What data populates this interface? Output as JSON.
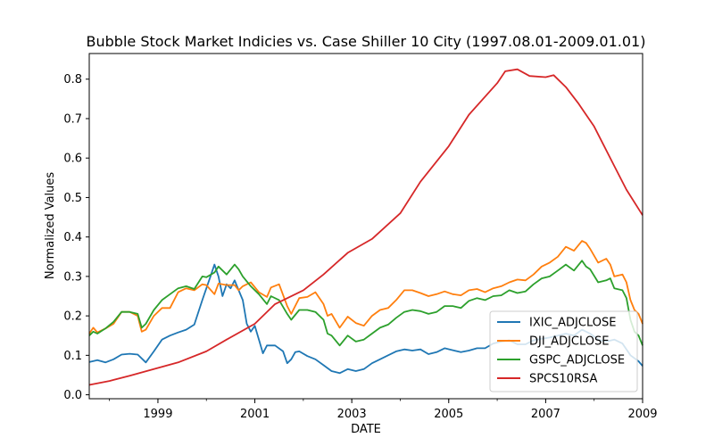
{
  "chart_data": {
    "type": "line",
    "title": "Bubble Stock Market Indicies vs. Case Shiller 10 City (1997.08.01-2009.01.01)",
    "xlabel": "DATE",
    "ylabel": "Normalized Values",
    "xlim": [
      "1997-08-01",
      "2009-01-01"
    ],
    "ylim": [
      -0.01,
      0.865
    ],
    "xticks": [
      "1999",
      "2001",
      "2003",
      "2005",
      "2007",
      "2009"
    ],
    "yticks": [
      "0.0",
      "0.1",
      "0.2",
      "0.3",
      "0.4",
      "0.5",
      "0.6",
      "0.7",
      "0.8"
    ],
    "grid": false,
    "legend_position": "lower-right",
    "series": [
      {
        "name": "IXIC_ADJCLOSE",
        "color": "#1f77b4",
        "points": [
          [
            "1997-08-01",
            0.083
          ],
          [
            "1997-10-01",
            0.088
          ],
          [
            "1997-12-01",
            0.082
          ],
          [
            "1998-02-01",
            0.09
          ],
          [
            "1998-04-01",
            0.102
          ],
          [
            "1998-06-01",
            0.104
          ],
          [
            "1998-08-01",
            0.102
          ],
          [
            "1998-10-01",
            0.082
          ],
          [
            "1998-12-01",
            0.11
          ],
          [
            "1999-02-01",
            0.14
          ],
          [
            "1999-04-01",
            0.15
          ],
          [
            "1999-06-01",
            0.158
          ],
          [
            "1999-08-01",
            0.165
          ],
          [
            "1999-10-01",
            0.178
          ],
          [
            "1999-12-01",
            0.24
          ],
          [
            "2000-02-01",
            0.3
          ],
          [
            "2000-03-01",
            0.33
          ],
          [
            "2000-04-01",
            0.3
          ],
          [
            "2000-05-01",
            0.25
          ],
          [
            "2000-06-01",
            0.28
          ],
          [
            "2000-07-01",
            0.27
          ],
          [
            "2000-08-01",
            0.29
          ],
          [
            "2000-09-01",
            0.265
          ],
          [
            "2000-10-01",
            0.24
          ],
          [
            "2000-11-01",
            0.18
          ],
          [
            "2000-12-01",
            0.16
          ],
          [
            "2001-01-01",
            0.175
          ],
          [
            "2001-02-01",
            0.14
          ],
          [
            "2001-03-01",
            0.105
          ],
          [
            "2001-04-01",
            0.125
          ],
          [
            "2001-06-01",
            0.125
          ],
          [
            "2001-08-01",
            0.11
          ],
          [
            "2001-09-01",
            0.08
          ],
          [
            "2001-10-01",
            0.09
          ],
          [
            "2001-11-01",
            0.108
          ],
          [
            "2001-12-01",
            0.11
          ],
          [
            "2002-02-01",
            0.098
          ],
          [
            "2002-04-01",
            0.09
          ],
          [
            "2002-06-01",
            0.075
          ],
          [
            "2002-08-01",
            0.06
          ],
          [
            "2002-10-01",
            0.055
          ],
          [
            "2002-12-01",
            0.065
          ],
          [
            "2003-02-01",
            0.06
          ],
          [
            "2003-04-01",
            0.065
          ],
          [
            "2003-06-01",
            0.08
          ],
          [
            "2003-08-01",
            0.09
          ],
          [
            "2003-10-01",
            0.1
          ],
          [
            "2003-12-01",
            0.11
          ],
          [
            "2004-02-01",
            0.115
          ],
          [
            "2004-04-01",
            0.112
          ],
          [
            "2004-06-01",
            0.115
          ],
          [
            "2004-08-01",
            0.103
          ],
          [
            "2004-10-01",
            0.108
          ],
          [
            "2004-12-01",
            0.118
          ],
          [
            "2005-02-01",
            0.113
          ],
          [
            "2005-04-01",
            0.108
          ],
          [
            "2005-06-01",
            0.112
          ],
          [
            "2005-08-01",
            0.118
          ],
          [
            "2005-10-01",
            0.118
          ],
          [
            "2005-12-01",
            0.13
          ],
          [
            "2006-02-01",
            0.135
          ],
          [
            "2006-04-01",
            0.138
          ],
          [
            "2006-06-01",
            0.128
          ],
          [
            "2006-08-01",
            0.128
          ],
          [
            "2006-10-01",
            0.138
          ],
          [
            "2006-12-01",
            0.142
          ],
          [
            "2007-02-01",
            0.145
          ],
          [
            "2007-04-01",
            0.15
          ],
          [
            "2007-06-01",
            0.155
          ],
          [
            "2007-08-01",
            0.15
          ],
          [
            "2007-10-01",
            0.165
          ],
          [
            "2007-12-01",
            0.155
          ],
          [
            "2008-02-01",
            0.14
          ],
          [
            "2008-04-01",
            0.135
          ],
          [
            "2008-06-01",
            0.14
          ],
          [
            "2008-08-01",
            0.13
          ],
          [
            "2008-10-01",
            0.1
          ],
          [
            "2008-12-01",
            0.085
          ],
          [
            "2009-01-01",
            0.073
          ]
        ]
      },
      {
        "name": "DJI_ADJCLOSE",
        "color": "#ff7f0e",
        "points": [
          [
            "1997-08-01",
            0.155
          ],
          [
            "1997-09-01",
            0.17
          ],
          [
            "1997-10-01",
            0.158
          ],
          [
            "1997-12-01",
            0.168
          ],
          [
            "1998-02-01",
            0.18
          ],
          [
            "1998-04-01",
            0.21
          ],
          [
            "1998-06-01",
            0.21
          ],
          [
            "1998-08-01",
            0.2
          ],
          [
            "1998-09-01",
            0.16
          ],
          [
            "1998-10-01",
            0.165
          ],
          [
            "1998-12-01",
            0.2
          ],
          [
            "1999-02-01",
            0.22
          ],
          [
            "1999-04-01",
            0.22
          ],
          [
            "1999-06-01",
            0.26
          ],
          [
            "1999-08-01",
            0.27
          ],
          [
            "1999-10-01",
            0.265
          ],
          [
            "1999-12-01",
            0.28
          ],
          [
            "2000-01-01",
            0.278
          ],
          [
            "2000-03-01",
            0.255
          ],
          [
            "2000-04-01",
            0.282
          ],
          [
            "2000-06-01",
            0.278
          ],
          [
            "2000-08-01",
            0.278
          ],
          [
            "2000-09-01",
            0.265
          ],
          [
            "2000-10-01",
            0.275
          ],
          [
            "2000-12-01",
            0.285
          ],
          [
            "2001-02-01",
            0.26
          ],
          [
            "2001-04-01",
            0.248
          ],
          [
            "2001-05-01",
            0.272
          ],
          [
            "2001-07-01",
            0.28
          ],
          [
            "2001-09-01",
            0.225
          ],
          [
            "2001-10-01",
            0.205
          ],
          [
            "2001-12-01",
            0.245
          ],
          [
            "2002-02-01",
            0.248
          ],
          [
            "2002-04-01",
            0.26
          ],
          [
            "2002-06-01",
            0.23
          ],
          [
            "2002-07-01",
            0.2
          ],
          [
            "2002-08-01",
            0.205
          ],
          [
            "2002-10-01",
            0.17
          ],
          [
            "2002-12-01",
            0.198
          ],
          [
            "2003-02-01",
            0.182
          ],
          [
            "2003-04-01",
            0.175
          ],
          [
            "2003-06-01",
            0.2
          ],
          [
            "2003-08-01",
            0.215
          ],
          [
            "2003-10-01",
            0.22
          ],
          [
            "2003-12-01",
            0.24
          ],
          [
            "2004-02-01",
            0.265
          ],
          [
            "2004-04-01",
            0.265
          ],
          [
            "2004-06-01",
            0.258
          ],
          [
            "2004-08-01",
            0.25
          ],
          [
            "2004-10-01",
            0.255
          ],
          [
            "2004-12-01",
            0.262
          ],
          [
            "2005-02-01",
            0.255
          ],
          [
            "2005-04-01",
            0.252
          ],
          [
            "2005-06-01",
            0.265
          ],
          [
            "2005-08-01",
            0.268
          ],
          [
            "2005-10-01",
            0.26
          ],
          [
            "2005-12-01",
            0.27
          ],
          [
            "2006-02-01",
            0.275
          ],
          [
            "2006-04-01",
            0.285
          ],
          [
            "2006-06-01",
            0.292
          ],
          [
            "2006-08-01",
            0.29
          ],
          [
            "2006-10-01",
            0.305
          ],
          [
            "2006-12-01",
            0.325
          ],
          [
            "2007-02-01",
            0.335
          ],
          [
            "2007-04-01",
            0.35
          ],
          [
            "2007-06-01",
            0.375
          ],
          [
            "2007-08-01",
            0.365
          ],
          [
            "2007-10-01",
            0.39
          ],
          [
            "2007-11-01",
            0.385
          ],
          [
            "2007-12-01",
            0.37
          ],
          [
            "2008-02-01",
            0.335
          ],
          [
            "2008-04-01",
            0.345
          ],
          [
            "2008-05-01",
            0.33
          ],
          [
            "2008-06-01",
            0.3
          ],
          [
            "2008-08-01",
            0.305
          ],
          [
            "2008-09-01",
            0.285
          ],
          [
            "2008-10-01",
            0.24
          ],
          [
            "2008-11-01",
            0.215
          ],
          [
            "2008-12-01",
            0.205
          ],
          [
            "2009-01-01",
            0.18
          ]
        ]
      },
      {
        "name": "GSPC_ADJCLOSE",
        "color": "#2ca02c",
        "points": [
          [
            "1997-08-01",
            0.15
          ],
          [
            "1997-09-01",
            0.16
          ],
          [
            "1997-10-01",
            0.155
          ],
          [
            "1997-12-01",
            0.168
          ],
          [
            "1998-02-01",
            0.185
          ],
          [
            "1998-04-01",
            0.21
          ],
          [
            "1998-06-01",
            0.21
          ],
          [
            "1998-08-01",
            0.205
          ],
          [
            "1998-09-01",
            0.17
          ],
          [
            "1998-10-01",
            0.18
          ],
          [
            "1998-12-01",
            0.215
          ],
          [
            "1999-02-01",
            0.24
          ],
          [
            "1999-04-01",
            0.255
          ],
          [
            "1999-06-01",
            0.27
          ],
          [
            "1999-08-01",
            0.275
          ],
          [
            "1999-10-01",
            0.268
          ],
          [
            "1999-12-01",
            0.3
          ],
          [
            "2000-01-01",
            0.298
          ],
          [
            "2000-03-01",
            0.31
          ],
          [
            "2000-04-01",
            0.325
          ],
          [
            "2000-06-01",
            0.305
          ],
          [
            "2000-08-01",
            0.33
          ],
          [
            "2000-09-01",
            0.318
          ],
          [
            "2000-10-01",
            0.3
          ],
          [
            "2000-12-01",
            0.275
          ],
          [
            "2001-02-01",
            0.255
          ],
          [
            "2001-04-01",
            0.23
          ],
          [
            "2001-05-01",
            0.25
          ],
          [
            "2001-07-01",
            0.24
          ],
          [
            "2001-09-01",
            0.205
          ],
          [
            "2001-10-01",
            0.19
          ],
          [
            "2001-12-01",
            0.215
          ],
          [
            "2002-02-01",
            0.215
          ],
          [
            "2002-04-01",
            0.21
          ],
          [
            "2002-06-01",
            0.19
          ],
          [
            "2002-07-01",
            0.155
          ],
          [
            "2002-08-01",
            0.15
          ],
          [
            "2002-10-01",
            0.125
          ],
          [
            "2002-12-01",
            0.15
          ],
          [
            "2003-02-01",
            0.135
          ],
          [
            "2003-04-01",
            0.14
          ],
          [
            "2003-06-01",
            0.155
          ],
          [
            "2003-08-01",
            0.17
          ],
          [
            "2003-10-01",
            0.178
          ],
          [
            "2003-12-01",
            0.195
          ],
          [
            "2004-02-01",
            0.21
          ],
          [
            "2004-04-01",
            0.215
          ],
          [
            "2004-06-01",
            0.212
          ],
          [
            "2004-08-01",
            0.205
          ],
          [
            "2004-10-01",
            0.21
          ],
          [
            "2004-12-01",
            0.225
          ],
          [
            "2005-02-01",
            0.225
          ],
          [
            "2005-04-01",
            0.22
          ],
          [
            "2005-06-01",
            0.238
          ],
          [
            "2005-08-01",
            0.245
          ],
          [
            "2005-10-01",
            0.24
          ],
          [
            "2005-12-01",
            0.25
          ],
          [
            "2006-02-01",
            0.252
          ],
          [
            "2006-04-01",
            0.265
          ],
          [
            "2006-06-01",
            0.258
          ],
          [
            "2006-08-01",
            0.262
          ],
          [
            "2006-10-01",
            0.28
          ],
          [
            "2006-12-01",
            0.295
          ],
          [
            "2007-02-01",
            0.3
          ],
          [
            "2007-04-01",
            0.315
          ],
          [
            "2007-06-01",
            0.33
          ],
          [
            "2007-08-01",
            0.315
          ],
          [
            "2007-10-01",
            0.34
          ],
          [
            "2007-11-01",
            0.325
          ],
          [
            "2007-12-01",
            0.318
          ],
          [
            "2008-02-01",
            0.285
          ],
          [
            "2008-04-01",
            0.29
          ],
          [
            "2008-05-01",
            0.295
          ],
          [
            "2008-06-01",
            0.27
          ],
          [
            "2008-08-01",
            0.265
          ],
          [
            "2008-09-01",
            0.245
          ],
          [
            "2008-10-01",
            0.19
          ],
          [
            "2008-11-01",
            0.16
          ],
          [
            "2008-12-01",
            0.15
          ],
          [
            "2009-01-01",
            0.125
          ]
        ]
      },
      {
        "name": "SPCS10RSA",
        "color": "#d62728",
        "points": [
          [
            "1997-08-01",
            0.025
          ],
          [
            "1998-01-01",
            0.035
          ],
          [
            "1998-06-01",
            0.048
          ],
          [
            "1998-12-01",
            0.065
          ],
          [
            "1999-06-01",
            0.082
          ],
          [
            "2000-01-01",
            0.11
          ],
          [
            "2000-06-01",
            0.14
          ],
          [
            "2001-01-01",
            0.18
          ],
          [
            "2001-06-01",
            0.23
          ],
          [
            "2002-01-01",
            0.265
          ],
          [
            "2002-06-01",
            0.305
          ],
          [
            "2002-12-01",
            0.36
          ],
          [
            "2003-06-01",
            0.395
          ],
          [
            "2004-01-01",
            0.46
          ],
          [
            "2004-06-01",
            0.54
          ],
          [
            "2005-01-01",
            0.63
          ],
          [
            "2005-06-01",
            0.71
          ],
          [
            "2006-01-01",
            0.79
          ],
          [
            "2006-03-01",
            0.82
          ],
          [
            "2006-06-01",
            0.825
          ],
          [
            "2006-09-01",
            0.808
          ],
          [
            "2007-01-01",
            0.805
          ],
          [
            "2007-03-01",
            0.81
          ],
          [
            "2007-06-01",
            0.78
          ],
          [
            "2007-09-01",
            0.74
          ],
          [
            "2008-01-01",
            0.68
          ],
          [
            "2008-06-01",
            0.58
          ],
          [
            "2008-09-01",
            0.52
          ],
          [
            "2009-01-01",
            0.455
          ]
        ]
      }
    ]
  }
}
